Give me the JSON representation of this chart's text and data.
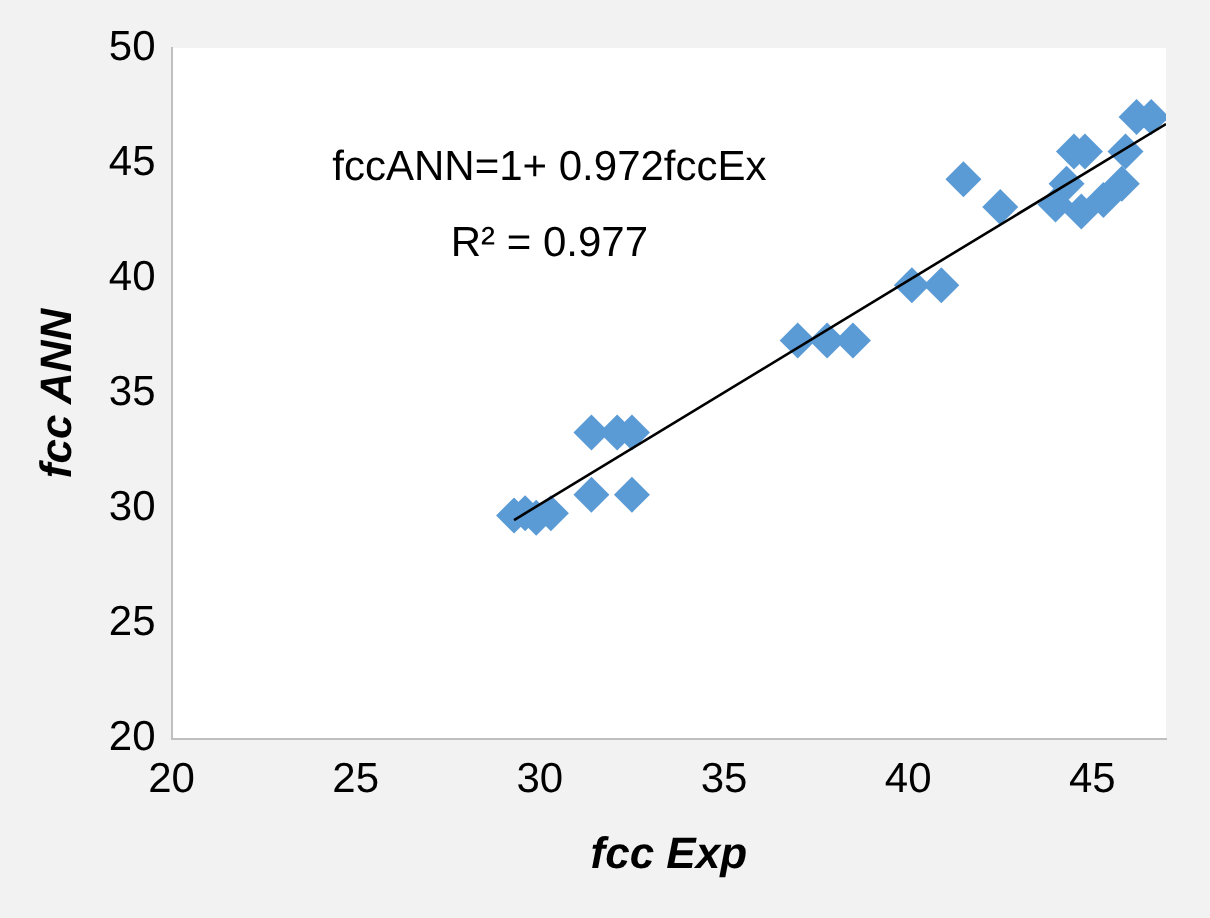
{
  "chart_data": {
    "type": "scatter",
    "xlabel": "fcc Exp",
    "ylabel": "fcc ANN",
    "xlim": [
      20,
      47
    ],
    "xticks": [
      20,
      25,
      30,
      35,
      40,
      45
    ],
    "ylim": [
      20,
      50
    ],
    "yticks": [
      20,
      25,
      30,
      35,
      40,
      45,
      50
    ],
    "grid": false,
    "legend": false,
    "marker": "diamond",
    "annotations": [
      "fccANN=1+ 0.972fccEx",
      "R² = 0.977"
    ],
    "series": [
      {
        "color": "#5b9bd5",
        "x": [
          29.3,
          29.6,
          29.9,
          30.3,
          31.4,
          32.1,
          32.5,
          31.4,
          32.5,
          37.0,
          37.8,
          38.5,
          40.1,
          40.9,
          41.5,
          42.5,
          44.0,
          44.5,
          44.8,
          44.3,
          44.7,
          45.3,
          45.8,
          45.9,
          46.2,
          46.6
        ],
        "values": [
          29.7,
          29.8,
          29.6,
          29.8,
          33.3,
          33.3,
          33.3,
          30.6,
          30.6,
          37.3,
          37.3,
          37.3,
          39.7,
          39.7,
          44.3,
          43.1,
          43.2,
          45.5,
          45.5,
          44.1,
          42.9,
          43.4,
          44.1,
          45.5,
          47.0,
          47.0
        ]
      },
      {
        "type": "line",
        "color": "#000000",
        "marker": "none",
        "x": [
          29.3,
          47
        ],
        "values": [
          29.5,
          46.7
        ]
      }
    ]
  }
}
